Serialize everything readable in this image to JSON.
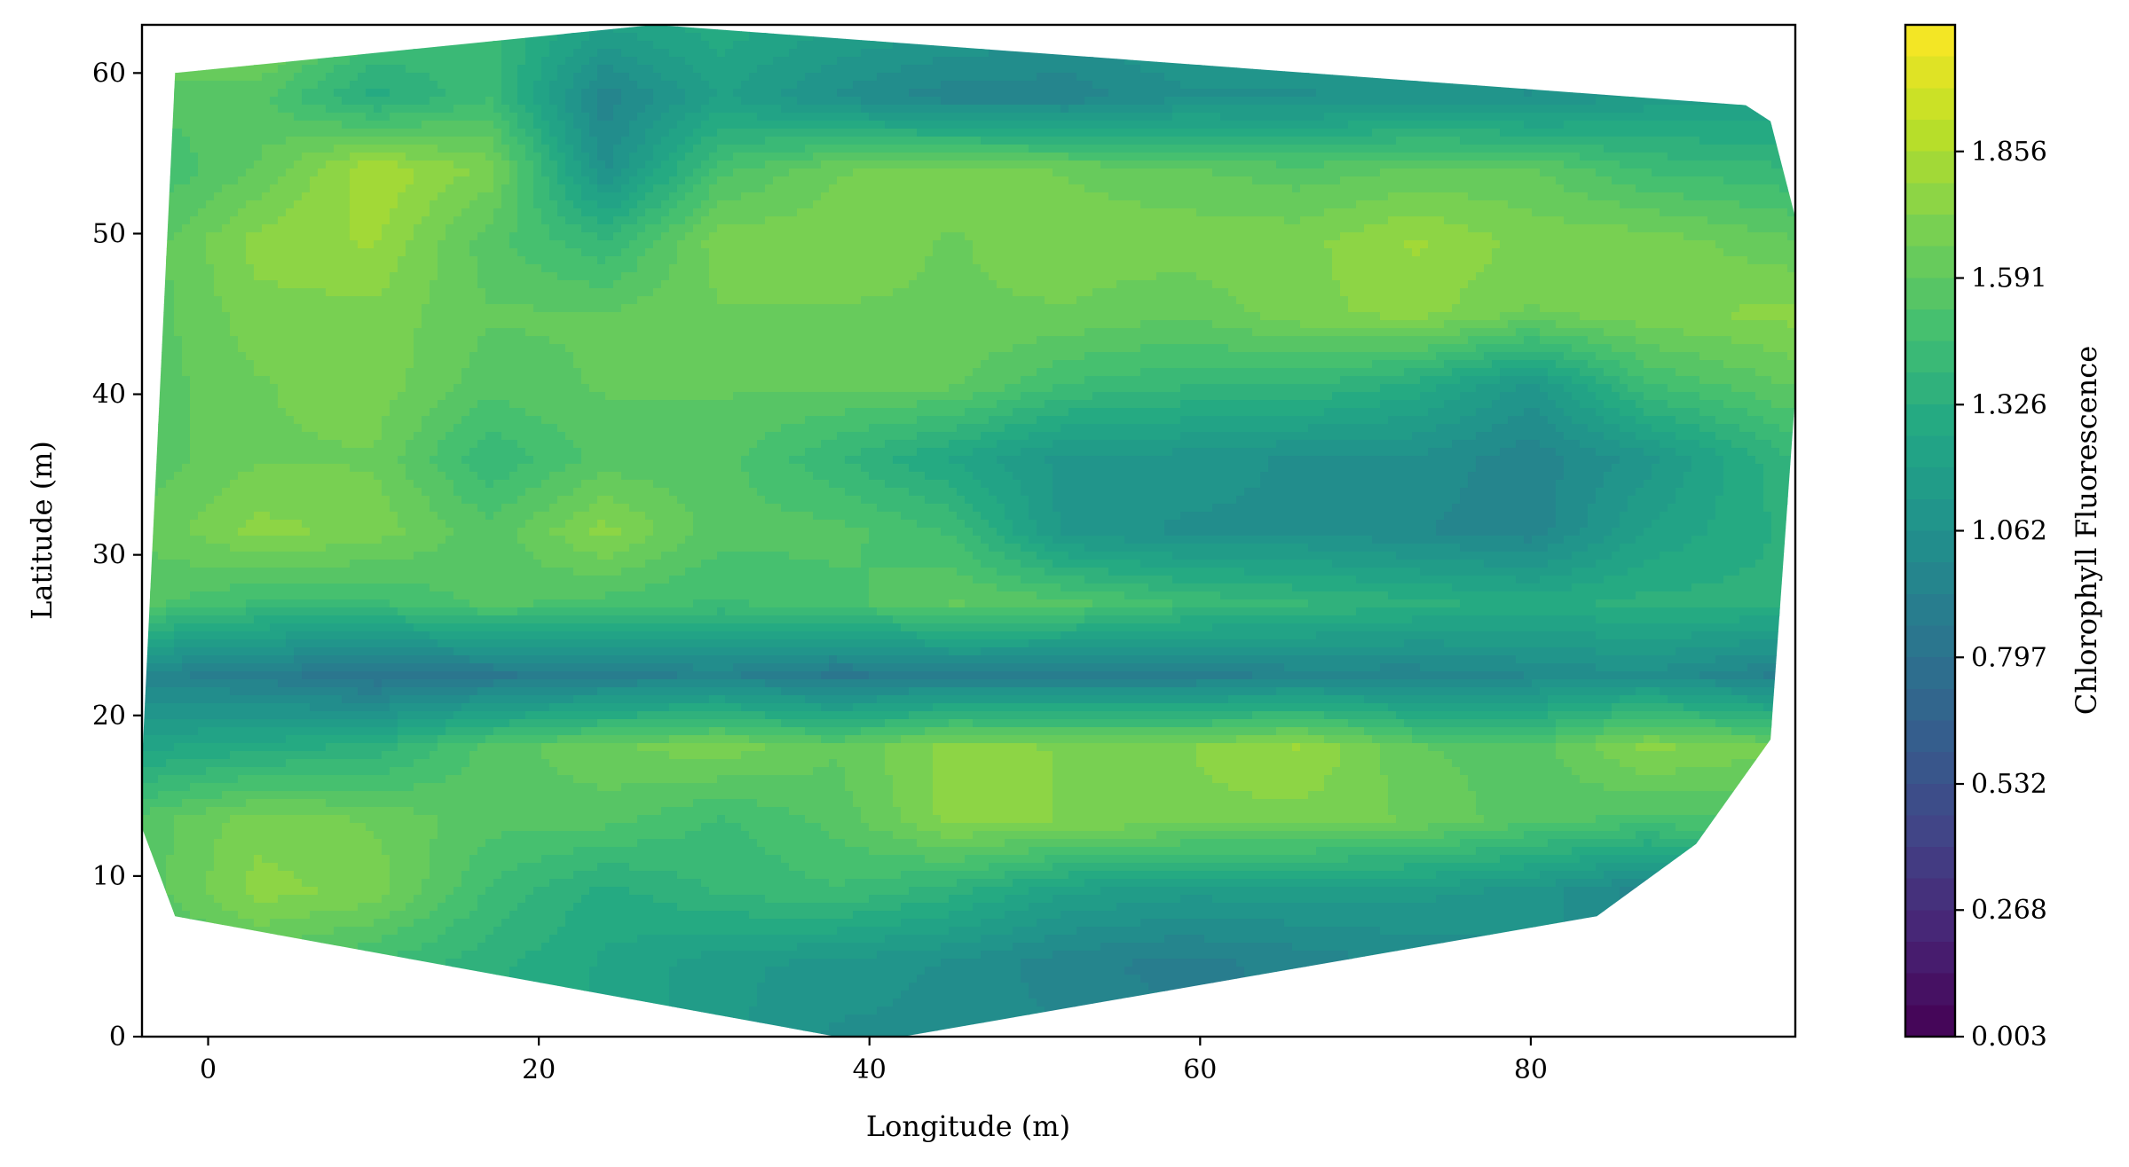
{
  "chart_data": {
    "type": "heatmap",
    "subtype": "filled-contour",
    "title": "",
    "xlabel": "Longitude (m)",
    "ylabel": "Latitude (m)",
    "colorbar_label": "Chlorophyll Fluorescence",
    "colormap": "viridis",
    "xlim": [
      -4,
      96
    ],
    "ylim": [
      0,
      63
    ],
    "x_ticks": [
      0,
      20,
      40,
      60,
      80
    ],
    "y_ticks": [
      0,
      10,
      20,
      30,
      40,
      50,
      60
    ],
    "x_tick_labels": [
      "0",
      "20",
      "40",
      "60",
      "80"
    ],
    "y_tick_labels": [
      "0",
      "10",
      "20",
      "30",
      "40",
      "50",
      "60"
    ],
    "colorbar_range": [
      0.003,
      2.121
    ],
    "colorbar_ticks": [
      0.003,
      0.268,
      0.532,
      0.797,
      1.062,
      1.326,
      1.591,
      1.856
    ],
    "colorbar_tick_labels": [
      "0.003",
      "0.268",
      "0.532",
      "0.797",
      "1.062",
      "1.326",
      "1.591",
      "1.856"
    ],
    "levels": 32,
    "grid": false,
    "hull": [
      [
        -2,
        60
      ],
      [
        27,
        63
      ],
      [
        93,
        58
      ],
      [
        94.5,
        57
      ],
      [
        96,
        51
      ],
      [
        96,
        40
      ],
      [
        94.5,
        18.5
      ],
      [
        90,
        12
      ],
      [
        84,
        7.5
      ],
      [
        42,
        0
      ],
      [
        38,
        0
      ],
      [
        -2,
        7.5
      ],
      [
        -4,
        13
      ],
      [
        -4,
        17
      ]
    ],
    "field": {
      "x": [
        -4,
        3,
        10,
        17,
        24,
        31,
        38,
        45,
        52,
        59,
        66,
        73,
        80,
        87,
        96
      ],
      "y": [
        0,
        4.5,
        9,
        13.5,
        18,
        22.5,
        27,
        31.5,
        36,
        40.5,
        45,
        49.5,
        54,
        58.5,
        63
      ],
      "z": [
        [
          1.4,
          1.4,
          1.35,
          1.3,
          1.25,
          1.15,
          1.05,
          1.05,
          1.0,
          0.95,
          0.95,
          1.0,
          1.05,
          1.15,
          1.2
        ],
        [
          1.45,
          1.55,
          1.45,
          1.35,
          1.25,
          1.15,
          1.1,
          1.05,
          0.95,
          0.9,
          0.95,
          1.0,
          1.05,
          1.1,
          1.15
        ],
        [
          1.55,
          1.75,
          1.7,
          1.45,
          1.3,
          1.4,
          1.45,
          1.35,
          1.2,
          1.15,
          1.15,
          1.15,
          1.1,
          0.95,
          1.2
        ],
        [
          1.55,
          1.7,
          1.65,
          1.55,
          1.55,
          1.45,
          1.55,
          1.75,
          1.72,
          1.7,
          1.7,
          1.65,
          1.55,
          1.5,
          1.55
        ],
        [
          1.25,
          1.3,
          1.35,
          1.55,
          1.65,
          1.7,
          1.6,
          1.75,
          1.72,
          1.72,
          1.8,
          1.6,
          1.55,
          1.75,
          1.65
        ],
        [
          0.95,
          0.9,
          0.8,
          0.85,
          0.9,
          0.95,
          0.85,
          0.9,
          0.9,
          0.9,
          0.95,
          0.95,
          1.0,
          1.05,
          0.9
        ],
        [
          1.55,
          1.45,
          1.45,
          1.55,
          1.5,
          1.45,
          1.5,
          1.6,
          1.55,
          1.45,
          1.4,
          1.35,
          1.3,
          1.35,
          1.35
        ],
        [
          1.6,
          1.75,
          1.7,
          1.55,
          1.75,
          1.55,
          1.55,
          1.45,
          1.1,
          1.05,
          1.05,
          1.0,
          0.95,
          1.2,
          1.35
        ],
        [
          1.55,
          1.65,
          1.65,
          1.4,
          1.55,
          1.55,
          1.4,
          1.25,
          1.1,
          1.1,
          1.05,
          1.05,
          0.95,
          1.1,
          1.4
        ],
        [
          1.55,
          1.65,
          1.7,
          1.55,
          1.6,
          1.6,
          1.6,
          1.6,
          1.45,
          1.4,
          1.4,
          1.3,
          1.1,
          1.45,
          1.6
        ],
        [
          1.55,
          1.7,
          1.7,
          1.6,
          1.6,
          1.65,
          1.65,
          1.65,
          1.65,
          1.6,
          1.7,
          1.75,
          1.65,
          1.7,
          1.75
        ],
        [
          1.55,
          1.75,
          1.8,
          1.55,
          1.4,
          1.7,
          1.7,
          1.65,
          1.7,
          1.7,
          1.7,
          1.8,
          1.7,
          1.7,
          1.6
        ],
        [
          1.45,
          1.6,
          1.85,
          1.7,
          1.05,
          1.5,
          1.65,
          1.7,
          1.65,
          1.6,
          1.55,
          1.6,
          1.6,
          1.45,
          1.4
        ],
        [
          1.55,
          1.55,
          1.3,
          1.45,
          0.95,
          1.2,
          1.05,
          0.95,
          0.95,
          1.05,
          1.05,
          1.1,
          1.05,
          1.15,
          1.2
        ],
        [
          1.7,
          1.75,
          1.5,
          1.4,
          1.2,
          1.3,
          1.2,
          1.15,
          1.1,
          1.15,
          1.15,
          1.15,
          1.2,
          1.2,
          1.2
        ]
      ]
    }
  }
}
